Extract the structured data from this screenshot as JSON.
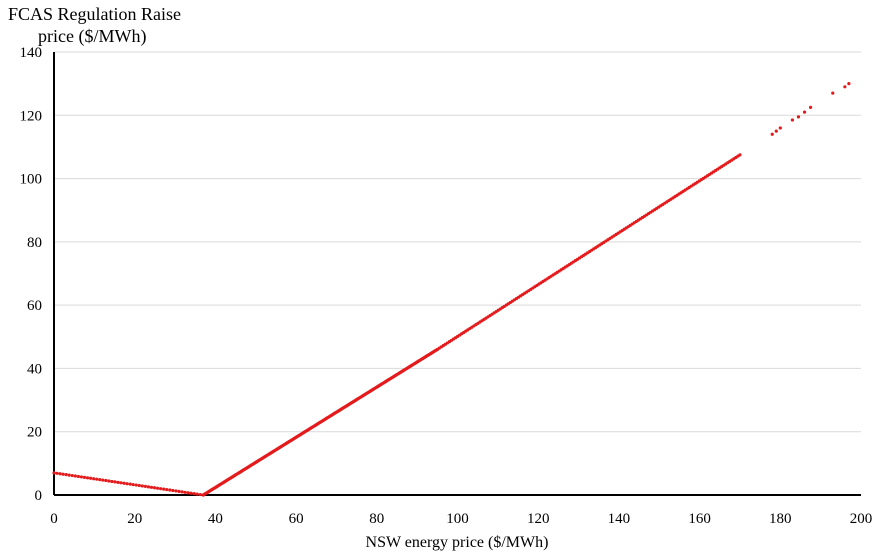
{
  "chart_data": {
    "type": "scatter",
    "ylabel_line1": "FCAS Regulation Raise",
    "ylabel_line2": "price ($/MWh)",
    "xlabel": "NSW energy price  ($/MWh)",
    "xlim": [
      0,
      200
    ],
    "ylim": [
      0,
      140
    ],
    "x_ticks": [
      "0",
      "20",
      "40",
      "60",
      "80",
      "100",
      "120",
      "140",
      "160",
      "180",
      "200"
    ],
    "y_ticks": [
      "0",
      "20",
      "40",
      "60",
      "80",
      "100",
      "120",
      "140"
    ],
    "grid": "horizontal",
    "marker_color": "#e41a1c",
    "segments": [
      {
        "x_start": 0,
        "x_end": 37,
        "y_start": 7,
        "y_end": 0,
        "points": 50
      },
      {
        "x_start": 37,
        "x_end": 95,
        "y_start": 0,
        "y_end": 46,
        "points": 240
      },
      {
        "x_start": 95,
        "x_end": 170,
        "y_start": 46,
        "y_end": 107.5,
        "points": 150
      }
    ],
    "sparse_points": [
      {
        "x": 178,
        "y": 114
      },
      {
        "x": 179,
        "y": 115
      },
      {
        "x": 180,
        "y": 116
      },
      {
        "x": 183,
        "y": 118.5
      },
      {
        "x": 184.5,
        "y": 119.5
      },
      {
        "x": 186,
        "y": 121
      },
      {
        "x": 187.5,
        "y": 122.5
      },
      {
        "x": 193,
        "y": 127
      },
      {
        "x": 196,
        "y": 129
      },
      {
        "x": 197,
        "y": 130
      }
    ]
  }
}
